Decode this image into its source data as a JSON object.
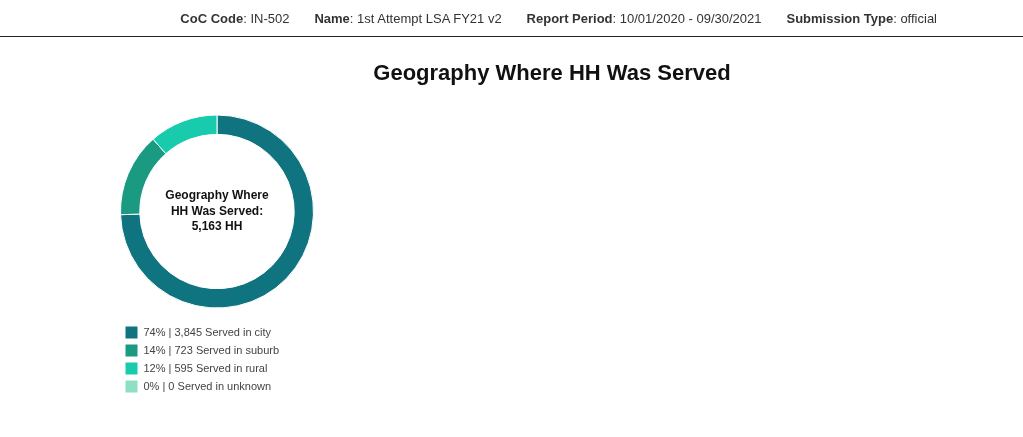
{
  "chart_data": {
    "type": "donut",
    "title": "Geography Where HH Was Served",
    "categories": [
      "74% | 3,845 Served in city",
      "14% | 723 Served in suburb",
      "12% | 595 Served in rural",
      "0% | 0 Served in unknown"
    ],
    "values": [
      3845,
      723,
      595,
      0
    ],
    "colors": [
      "#0f7380",
      "#1b9a82",
      "#19cbad",
      "#8fe0c2"
    ],
    "legend": "bottom left",
    "annotations": [
      "CoC Code: IN-502",
      "Name: 1st Attempt LSA FY21 v2",
      "Report Period: 10/01/2020 - 09/30/2021",
      "Submission Type: official",
      "Geography Where HH Was Served: 5,163 HH"
    ]
  }
}
